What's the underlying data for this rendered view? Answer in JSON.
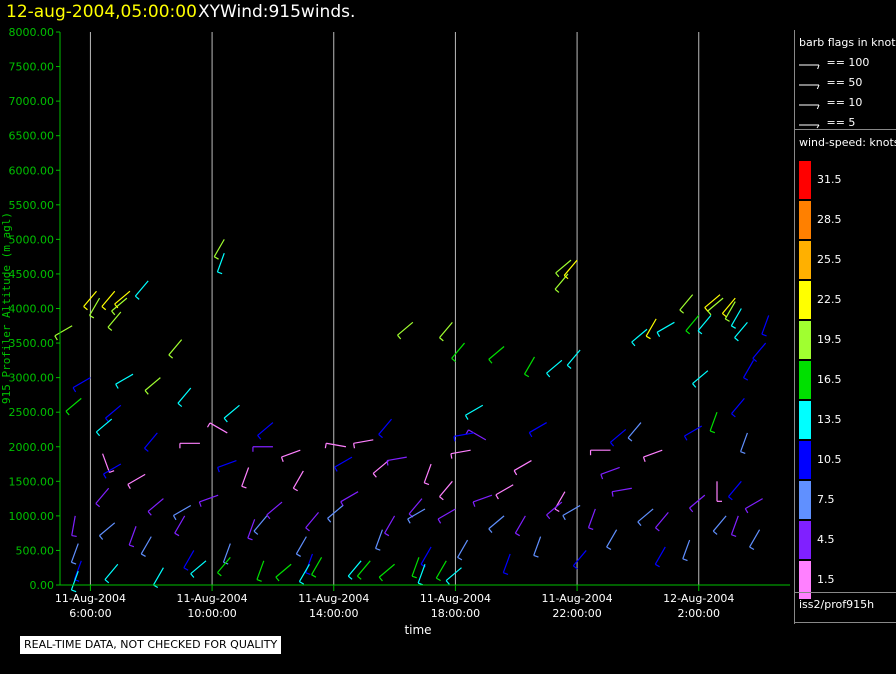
{
  "header": {
    "date_time": "12-aug-2004,05:00:00",
    "product": "XYWind:915winds."
  },
  "legend": {
    "barb_title": "barb flags in knots",
    "barb_items": [
      {
        "label": "== 100"
      },
      {
        "label": "== 50"
      },
      {
        "label": "== 10"
      },
      {
        "label": "== 5"
      }
    ],
    "speed_title": "wind-speed: knots",
    "speed_scale": [
      {
        "label": "31.5",
        "color": "#ff0000"
      },
      {
        "label": "28.5",
        "color": "#ff8000"
      },
      {
        "label": "25.5",
        "color": "#ffb000"
      },
      {
        "label": "22.5",
        "color": "#ffff00"
      },
      {
        "label": "19.5",
        "color": "#a0ff30"
      },
      {
        "label": "16.5",
        "color": "#00e000"
      },
      {
        "label": "13.5",
        "color": "#00ffff"
      },
      {
        "label": "10.5",
        "color": "#0000ff"
      },
      {
        "label": "7.5",
        "color": "#6090ff"
      },
      {
        "label": "4.5",
        "color": "#8020ff"
      },
      {
        "label": "1.5",
        "color": "#ff80ff"
      }
    ],
    "source": "iss2/prof915h"
  },
  "note": "REAL-TIME DATA, NOT CHECKED FOR QUALITY",
  "chart_data": {
    "type": "scatter",
    "subtype": "wind-barb time-height",
    "ylabel": "915 Profiler Altitude (m agl)",
    "xlabel": "time",
    "ylim": [
      0,
      8000
    ],
    "y_ticks": [
      "0.00",
      "500.00",
      "1000.00",
      "1500.00",
      "2000.00",
      "2500.00",
      "3000.00",
      "3500.00",
      "4000.00",
      "4500.00",
      "5000.00",
      "5500.00",
      "6000.00",
      "6500.00",
      "7000.00",
      "7500.00",
      "8000.00"
    ],
    "x_ticks": [
      {
        "hours": 6,
        "date": "11-Aug-2004",
        "time": "6:00:00"
      },
      {
        "hours": 10,
        "date": "11-Aug-2004",
        "time": "10:00:00"
      },
      {
        "hours": 14,
        "date": "11-Aug-2004",
        "time": "14:00:00"
      },
      {
        "hours": 18,
        "date": "11-Aug-2004",
        "time": "18:00:00"
      },
      {
        "hours": 22,
        "date": "11-Aug-2004",
        "time": "22:00:00"
      },
      {
        "hours": 26,
        "date": "12-Aug-2004",
        "time": "2:00:00"
      }
    ],
    "xlim_hours": [
      5,
      29
    ],
    "vertical_grid": true,
    "series": [
      {
        "name": "",
        "color": "#ff80ff",
        "points": [
          [
            6.4,
            1900,
            160
          ],
          [
            7.8,
            1600,
            240
          ],
          [
            9.6,
            2050,
            270
          ],
          [
            11.2,
            1700,
            200
          ],
          [
            12.9,
            1950,
            250
          ],
          [
            14.4,
            2000,
            280
          ],
          [
            15.8,
            1800,
            230
          ],
          [
            17.2,
            1750,
            200
          ],
          [
            18.5,
            1950,
            260
          ],
          [
            19.9,
            1450,
            240
          ],
          [
            21.6,
            1350,
            210
          ],
          [
            23.1,
            1950,
            270
          ],
          [
            24.8,
            1950,
            250
          ],
          [
            26.6,
            1500,
            180
          ],
          [
            10.5,
            2200,
            300
          ],
          [
            13.0,
            1650,
            210
          ],
          [
            15.3,
            2100,
            260
          ],
          [
            17.9,
            1500,
            220
          ],
          [
            20.5,
            1800,
            240
          ]
        ]
      },
      {
        "name": "",
        "color": "#8020ff",
        "points": [
          [
            5.5,
            1000,
            190
          ],
          [
            6.6,
            1400,
            220
          ],
          [
            7.5,
            850,
            200
          ],
          [
            8.4,
            1250,
            230
          ],
          [
            9.1,
            1000,
            210
          ],
          [
            10.2,
            1300,
            250
          ],
          [
            11.4,
            950,
            200
          ],
          [
            12.3,
            1200,
            230
          ],
          [
            13.5,
            1050,
            220
          ],
          [
            14.8,
            1350,
            240
          ],
          [
            16.0,
            1000,
            210
          ],
          [
            16.9,
            1250,
            220
          ],
          [
            18.0,
            1100,
            240
          ],
          [
            19.2,
            1300,
            250
          ],
          [
            20.3,
            1000,
            210
          ],
          [
            21.5,
            1200,
            230
          ],
          [
            22.6,
            1100,
            200
          ],
          [
            23.8,
            1400,
            260
          ],
          [
            25.0,
            1050,
            220
          ],
          [
            26.2,
            1300,
            230
          ],
          [
            27.3,
            1000,
            200
          ],
          [
            28.1,
            1250,
            240
          ],
          [
            12.0,
            2000,
            270
          ],
          [
            16.4,
            1850,
            260
          ],
          [
            19.0,
            2100,
            300
          ],
          [
            23.4,
            1700,
            250
          ]
        ]
      },
      {
        "name": "",
        "color": "#6090ff",
        "points": [
          [
            5.6,
            600,
            200
          ],
          [
            6.8,
            900,
            230
          ],
          [
            8.0,
            700,
            210
          ],
          [
            9.3,
            1150,
            240
          ],
          [
            10.6,
            600,
            200
          ],
          [
            11.8,
            1000,
            220
          ],
          [
            13.1,
            700,
            210
          ],
          [
            14.3,
            1150,
            230
          ],
          [
            15.6,
            800,
            200
          ],
          [
            17.0,
            1100,
            240
          ],
          [
            18.4,
            650,
            210
          ],
          [
            19.6,
            1000,
            230
          ],
          [
            20.8,
            700,
            200
          ],
          [
            22.1,
            1150,
            240
          ],
          [
            23.3,
            800,
            210
          ],
          [
            24.5,
            1100,
            230
          ],
          [
            25.7,
            650,
            200
          ],
          [
            26.9,
            1000,
            220
          ],
          [
            28.0,
            800,
            210
          ],
          [
            27.6,
            2200,
            200
          ],
          [
            24.1,
            2350,
            220
          ]
        ]
      },
      {
        "name": "",
        "color": "#0000ff",
        "points": [
          [
            5.7,
            350,
            200
          ],
          [
            7.0,
            1750,
            240
          ],
          [
            8.2,
            2200,
            220
          ],
          [
            9.4,
            500,
            210
          ],
          [
            10.8,
            1800,
            250
          ],
          [
            12.0,
            2350,
            230
          ],
          [
            13.3,
            450,
            200
          ],
          [
            14.6,
            1850,
            240
          ],
          [
            15.9,
            2400,
            220
          ],
          [
            17.2,
            550,
            210
          ],
          [
            18.6,
            2200,
            260
          ],
          [
            19.8,
            450,
            200
          ],
          [
            21.0,
            2350,
            240
          ],
          [
            22.3,
            500,
            220
          ],
          [
            23.6,
            2250,
            230
          ],
          [
            24.9,
            550,
            210
          ],
          [
            26.1,
            2300,
            240
          ],
          [
            27.4,
            1500,
            220
          ],
          [
            28.3,
            3900,
            200
          ],
          [
            28.2,
            3500,
            220
          ],
          [
            27.8,
            3250,
            210
          ],
          [
            6.0,
            3000,
            240
          ],
          [
            7.0,
            2600,
            230
          ],
          [
            27.5,
            2700,
            220
          ]
        ]
      },
      {
        "name": "",
        "color": "#00ffff",
        "points": [
          [
            5.6,
            200,
            200
          ],
          [
            6.9,
            300,
            220
          ],
          [
            8.4,
            250,
            210
          ],
          [
            9.8,
            350,
            230
          ],
          [
            13.2,
            300,
            210
          ],
          [
            14.9,
            350,
            220
          ],
          [
            17.0,
            300,
            200
          ],
          [
            18.2,
            250,
            230
          ],
          [
            7.4,
            3050,
            240
          ],
          [
            9.3,
            2850,
            220
          ],
          [
            10.9,
            2600,
            230
          ],
          [
            25.2,
            3800,
            240
          ],
          [
            26.3,
            3100,
            230
          ],
          [
            26.4,
            3900,
            220
          ],
          [
            27.4,
            4000,
            210
          ],
          [
            27.6,
            3800,
            220
          ],
          [
            22.1,
            3400,
            220
          ],
          [
            21.5,
            3250,
            230
          ],
          [
            10.4,
            4800,
            200
          ],
          [
            6.7,
            2400,
            230
          ],
          [
            18.9,
            2600,
            240
          ],
          [
            7.9,
            4400,
            220
          ],
          [
            24.3,
            3700,
            230
          ]
        ]
      },
      {
        "name": "",
        "color": "#00e000",
        "points": [
          [
            10.6,
            400,
            220
          ],
          [
            11.7,
            350,
            200
          ],
          [
            12.6,
            300,
            230
          ],
          [
            13.6,
            400,
            210
          ],
          [
            15.2,
            350,
            220
          ],
          [
            16.0,
            300,
            230
          ],
          [
            16.8,
            400,
            200
          ],
          [
            17.7,
            350,
            210
          ],
          [
            5.7,
            2700,
            230
          ],
          [
            18.3,
            3500,
            220
          ],
          [
            19.6,
            3450,
            230
          ],
          [
            20.6,
            3300,
            210
          ],
          [
            26.0,
            3900,
            220
          ],
          [
            26.6,
            2500,
            200
          ]
        ]
      },
      {
        "name": "",
        "color": "#a0ff30",
        "points": [
          [
            6.3,
            4150,
            210
          ],
          [
            7.2,
            4150,
            230
          ],
          [
            7.0,
            3950,
            220
          ],
          [
            5.4,
            3750,
            240
          ],
          [
            10.4,
            5000,
            210
          ],
          [
            21.8,
            4700,
            230
          ],
          [
            21.7,
            4500,
            220
          ],
          [
            25.8,
            4200,
            220
          ],
          [
            26.8,
            4150,
            230
          ],
          [
            27.2,
            4100,
            210
          ],
          [
            16.6,
            3800,
            230
          ],
          [
            17.9,
            3800,
            220
          ],
          [
            9.0,
            3550,
            220
          ],
          [
            8.3,
            3000,
            230
          ]
        ]
      },
      {
        "name": "",
        "color": "#ffff00",
        "points": [
          [
            6.2,
            4250,
            220
          ],
          [
            6.8,
            4250,
            220
          ],
          [
            7.3,
            4250,
            230
          ],
          [
            26.7,
            4200,
            230
          ],
          [
            27.2,
            4150,
            220
          ],
          [
            22.0,
            4700,
            220
          ],
          [
            24.6,
            3850,
            210
          ]
        ]
      }
    ]
  }
}
